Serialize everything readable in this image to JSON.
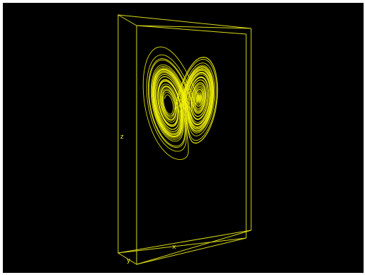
{
  "plot": {
    "stroke_color": "#f2f20a",
    "box_color": "#d8d81a",
    "background": "#000000"
  },
  "axes": {
    "x_label": "x",
    "y_label": "y",
    "z_label": "z"
  }
}
